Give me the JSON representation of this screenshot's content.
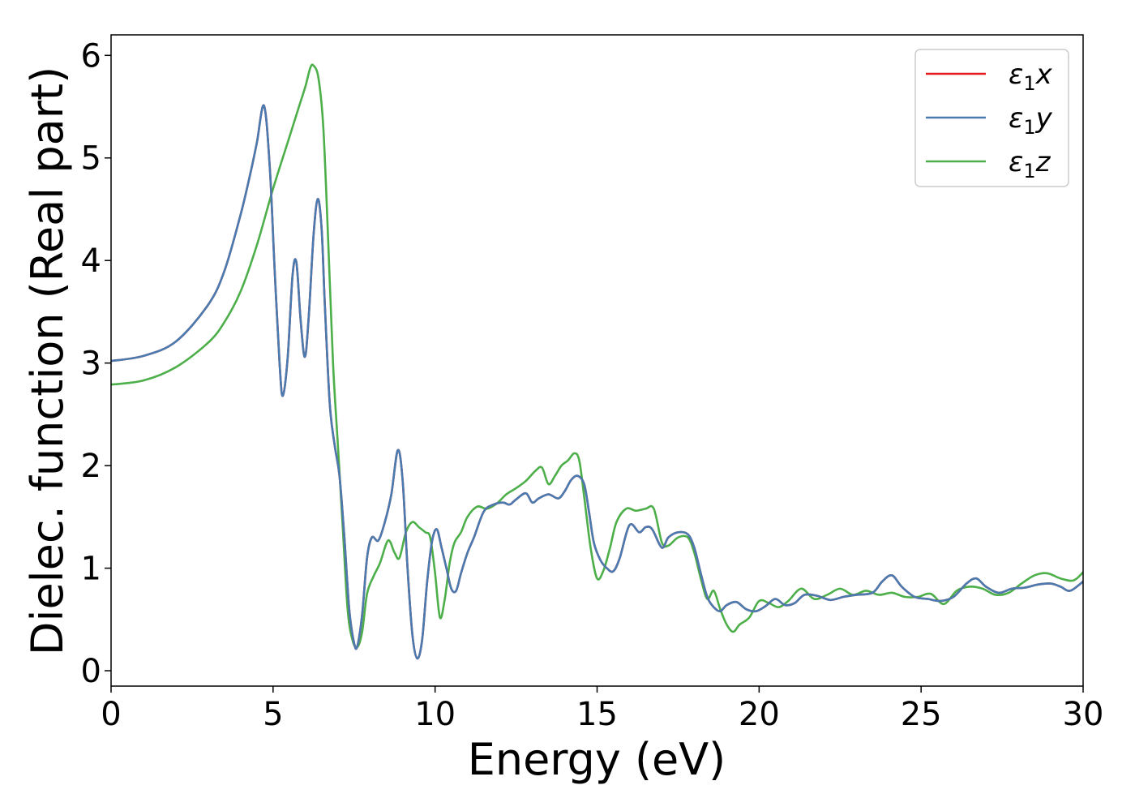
{
  "chart_data": {
    "type": "line",
    "title": "",
    "xlabel": "Energy (eV)",
    "ylabel": "Dielec. function (Real part)",
    "xlim": [
      0,
      30
    ],
    "ylim": [
      -0.15,
      6.2
    ],
    "xticks": [
      0,
      5,
      10,
      15,
      20,
      25,
      30
    ],
    "yticks": [
      0,
      1,
      2,
      3,
      4,
      5,
      6
    ],
    "grid": false,
    "legend_position": "top-right",
    "series": [
      {
        "name": "ε1x",
        "legend_base": "ε",
        "legend_sub": "1",
        "legend_var": "x",
        "color": "#e41a1c",
        "x": [
          0,
          1,
          2,
          3,
          3.5,
          4,
          4.3,
          4.5,
          4.72,
          4.9,
          5.05,
          5.2,
          5.3,
          5.45,
          5.6,
          5.72,
          5.85,
          5.98,
          6.1,
          6.25,
          6.38,
          6.5,
          6.6,
          6.75,
          6.9,
          7.05,
          7.2,
          7.35,
          7.5,
          7.6,
          7.75,
          7.9,
          8.05,
          8.25,
          8.45,
          8.65,
          8.85,
          9.0,
          9.15,
          9.3,
          9.45,
          9.6,
          9.75,
          9.9,
          10.05,
          10.2,
          10.35,
          10.5,
          10.65,
          10.8,
          11.0,
          11.2,
          11.5,
          11.8,
          12.1,
          12.3,
          12.5,
          12.8,
          13.0,
          13.2,
          13.5,
          13.8,
          14.0,
          14.2,
          14.4,
          14.6,
          14.75,
          14.9,
          15.1,
          15.3,
          15.5,
          15.7,
          16.0,
          16.3,
          16.5,
          16.7,
          17.0,
          17.2,
          17.5,
          17.8,
          18.0,
          18.2,
          18.4,
          18.6,
          18.8,
          19.0,
          19.3,
          19.6,
          19.9,
          20.2,
          20.5,
          20.8,
          21.1,
          21.4,
          21.8,
          22.2,
          22.6,
          23.0,
          23.5,
          23.8,
          24.1,
          24.4,
          24.8,
          25.2,
          25.6,
          26.0,
          26.4,
          26.7,
          27.0,
          27.4,
          27.8,
          28.2,
          28.6,
          29.0,
          29.3,
          29.6,
          30.0
        ],
        "values": [
          3.02,
          3.07,
          3.21,
          3.57,
          3.9,
          4.45,
          4.85,
          5.15,
          5.51,
          4.9,
          3.9,
          3.0,
          2.68,
          3.05,
          3.85,
          3.98,
          3.42,
          3.06,
          3.45,
          4.25,
          4.6,
          4.3,
          3.55,
          2.6,
          2.2,
          1.9,
          1.3,
          0.6,
          0.27,
          0.24,
          0.55,
          1.1,
          1.3,
          1.27,
          1.45,
          1.72,
          2.15,
          1.85,
          1.0,
          0.35,
          0.12,
          0.3,
          0.85,
          1.25,
          1.38,
          1.2,
          1.0,
          0.8,
          0.78,
          0.95,
          1.15,
          1.3,
          1.55,
          1.62,
          1.64,
          1.62,
          1.67,
          1.73,
          1.64,
          1.68,
          1.72,
          1.68,
          1.75,
          1.86,
          1.9,
          1.82,
          1.55,
          1.25,
          1.08,
          1.0,
          0.97,
          1.1,
          1.42,
          1.35,
          1.4,
          1.38,
          1.2,
          1.3,
          1.35,
          1.33,
          1.2,
          0.95,
          0.72,
          0.62,
          0.58,
          0.64,
          0.67,
          0.6,
          0.58,
          0.63,
          0.7,
          0.64,
          0.66,
          0.74,
          0.73,
          0.69,
          0.72,
          0.74,
          0.76,
          0.87,
          0.93,
          0.82,
          0.72,
          0.7,
          0.68,
          0.72,
          0.85,
          0.9,
          0.82,
          0.76,
          0.8,
          0.81,
          0.84,
          0.85,
          0.82,
          0.78,
          0.87
        ]
      },
      {
        "name": "ε1y",
        "legend_base": "ε",
        "legend_sub": "1",
        "legend_var": "y",
        "color": "#4a7bb0",
        "x": [
          0,
          1,
          2,
          3,
          3.5,
          4,
          4.3,
          4.5,
          4.72,
          4.9,
          5.05,
          5.2,
          5.3,
          5.45,
          5.6,
          5.72,
          5.85,
          5.98,
          6.1,
          6.25,
          6.38,
          6.5,
          6.6,
          6.75,
          6.9,
          7.05,
          7.2,
          7.35,
          7.5,
          7.6,
          7.75,
          7.9,
          8.05,
          8.25,
          8.45,
          8.65,
          8.85,
          9.0,
          9.15,
          9.3,
          9.45,
          9.6,
          9.75,
          9.9,
          10.05,
          10.2,
          10.35,
          10.5,
          10.65,
          10.8,
          11.0,
          11.2,
          11.5,
          11.8,
          12.1,
          12.3,
          12.5,
          12.8,
          13.0,
          13.2,
          13.5,
          13.8,
          14.0,
          14.2,
          14.4,
          14.6,
          14.75,
          14.9,
          15.1,
          15.3,
          15.5,
          15.7,
          16.0,
          16.3,
          16.5,
          16.7,
          17.0,
          17.2,
          17.5,
          17.8,
          18.0,
          18.2,
          18.4,
          18.6,
          18.8,
          19.0,
          19.3,
          19.6,
          19.9,
          20.2,
          20.5,
          20.8,
          21.1,
          21.4,
          21.8,
          22.2,
          22.6,
          23.0,
          23.5,
          23.8,
          24.1,
          24.4,
          24.8,
          25.2,
          25.6,
          26.0,
          26.4,
          26.7,
          27.0,
          27.4,
          27.8,
          28.2,
          28.6,
          29.0,
          29.3,
          29.6,
          30.0
        ],
        "values": [
          3.02,
          3.07,
          3.21,
          3.57,
          3.9,
          4.45,
          4.85,
          5.15,
          5.51,
          4.9,
          3.9,
          3.0,
          2.68,
          3.05,
          3.85,
          3.98,
          3.42,
          3.06,
          3.45,
          4.25,
          4.6,
          4.3,
          3.55,
          2.6,
          2.2,
          1.9,
          1.3,
          0.6,
          0.27,
          0.24,
          0.55,
          1.1,
          1.3,
          1.27,
          1.45,
          1.72,
          2.15,
          1.85,
          1.0,
          0.35,
          0.12,
          0.3,
          0.85,
          1.25,
          1.38,
          1.2,
          1.0,
          0.8,
          0.78,
          0.95,
          1.15,
          1.3,
          1.55,
          1.62,
          1.64,
          1.62,
          1.67,
          1.73,
          1.64,
          1.68,
          1.72,
          1.68,
          1.75,
          1.86,
          1.9,
          1.82,
          1.55,
          1.25,
          1.08,
          1.0,
          0.97,
          1.1,
          1.42,
          1.35,
          1.4,
          1.38,
          1.2,
          1.3,
          1.35,
          1.33,
          1.2,
          0.95,
          0.72,
          0.62,
          0.58,
          0.64,
          0.67,
          0.6,
          0.58,
          0.63,
          0.7,
          0.64,
          0.66,
          0.74,
          0.73,
          0.69,
          0.72,
          0.74,
          0.76,
          0.87,
          0.93,
          0.82,
          0.72,
          0.7,
          0.68,
          0.72,
          0.85,
          0.9,
          0.82,
          0.76,
          0.8,
          0.81,
          0.84,
          0.85,
          0.82,
          0.78,
          0.87
        ]
      },
      {
        "name": "ε1z",
        "legend_base": "ε",
        "legend_sub": "1",
        "legend_var": "z",
        "color": "#4daf4a",
        "x": [
          0,
          1,
          2,
          3,
          3.5,
          4,
          4.5,
          5.0,
          5.5,
          5.8,
          6.0,
          6.15,
          6.25,
          6.4,
          6.55,
          6.7,
          6.85,
          7.0,
          7.15,
          7.3,
          7.45,
          7.6,
          7.75,
          7.9,
          8.1,
          8.3,
          8.55,
          8.75,
          8.9,
          9.1,
          9.3,
          9.5,
          9.7,
          9.85,
          10.0,
          10.15,
          10.3,
          10.45,
          10.6,
          10.8,
          11.0,
          11.3,
          11.6,
          11.9,
          12.2,
          12.5,
          12.8,
          13.1,
          13.3,
          13.5,
          13.7,
          13.9,
          14.1,
          14.3,
          14.45,
          14.6,
          14.8,
          15.0,
          15.2,
          15.4,
          15.6,
          15.9,
          16.2,
          16.5,
          16.75,
          17.0,
          17.2,
          17.5,
          17.8,
          18.0,
          18.2,
          18.4,
          18.6,
          18.8,
          19.0,
          19.2,
          19.4,
          19.7,
          20.0,
          20.3,
          20.6,
          20.9,
          21.3,
          21.7,
          22.1,
          22.5,
          22.9,
          23.3,
          23.7,
          24.1,
          24.5,
          24.9,
          25.3,
          25.7,
          26.1,
          26.5,
          26.9,
          27.3,
          27.7,
          28.1,
          28.5,
          28.9,
          29.3,
          29.7,
          30.0
        ],
        "values": [
          2.79,
          2.83,
          2.96,
          3.2,
          3.4,
          3.7,
          4.15,
          4.7,
          5.2,
          5.5,
          5.7,
          5.88,
          5.9,
          5.78,
          5.3,
          4.2,
          3.0,
          2.2,
          1.4,
          0.6,
          0.3,
          0.23,
          0.38,
          0.75,
          0.92,
          1.05,
          1.27,
          1.15,
          1.1,
          1.35,
          1.45,
          1.4,
          1.35,
          1.3,
          0.95,
          0.52,
          0.7,
          1.05,
          1.25,
          1.35,
          1.5,
          1.6,
          1.58,
          1.63,
          1.72,
          1.78,
          1.85,
          1.95,
          1.98,
          1.82,
          1.9,
          2.0,
          2.05,
          2.12,
          2.05,
          1.7,
          1.2,
          0.9,
          0.98,
          1.2,
          1.45,
          1.58,
          1.56,
          1.58,
          1.58,
          1.25,
          1.22,
          1.3,
          1.3,
          1.15,
          0.9,
          0.7,
          0.78,
          0.6,
          0.45,
          0.38,
          0.45,
          0.52,
          0.68,
          0.66,
          0.62,
          0.68,
          0.8,
          0.7,
          0.74,
          0.8,
          0.74,
          0.78,
          0.74,
          0.76,
          0.72,
          0.72,
          0.75,
          0.65,
          0.78,
          0.82,
          0.8,
          0.74,
          0.76,
          0.85,
          0.93,
          0.95,
          0.9,
          0.88,
          0.96
        ]
      }
    ]
  }
}
